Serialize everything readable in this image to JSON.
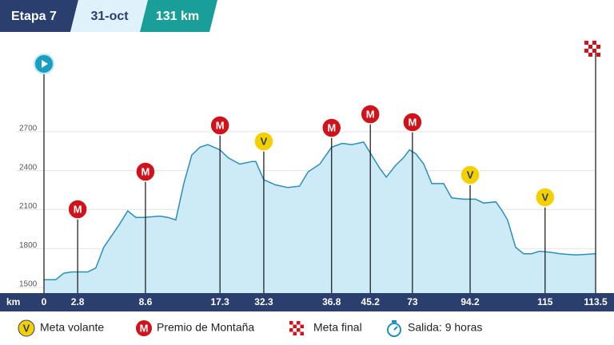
{
  "header": {
    "stage": "Etapa 7",
    "date": "31-oct",
    "distance": "131 km"
  },
  "chart_data": {
    "type": "area",
    "x_unit": "km",
    "x": [
      0,
      2.8,
      4.7,
      6.6,
      10.4,
      12.3,
      14.2,
      16.1,
      18.0,
      19.9,
      21.8,
      23.7,
      27.5,
      29.4,
      31.3,
      33.2,
      35.1,
      37.0,
      38.9,
      41.8,
      43.7,
      46.5,
      49.4,
      50.3,
      52.2,
      55.0,
      57.9,
      60.7,
      62.7,
      65.5,
      68.3,
      70.8,
      73.1,
      75.9,
      77.8,
      79.7,
      81.3,
      83.5,
      85.4,
      86.8,
      88.3,
      90.2,
      92.1,
      94.9,
      96.8,
      99.7,
      102.5,
      104.4,
      107.3,
      108.8,
      110.1,
      112.0,
      113.9,
      115.8,
      117.7,
      120.6,
      122.5,
      126.3,
      131
    ],
    "values": [
      1560,
      1560,
      1610,
      1620,
      1620,
      1650,
      1810,
      1900,
      1990,
      2090,
      2040,
      2040,
      2050,
      2040,
      2020,
      2300,
      2520,
      2580,
      2600,
      2560,
      2500,
      2450,
      2470,
      2470,
      2330,
      2290,
      2270,
      2280,
      2390,
      2450,
      2580,
      2610,
      2600,
      2620,
      2520,
      2420,
      2350,
      2440,
      2500,
      2560,
      2530,
      2450,
      2300,
      2300,
      2190,
      2180,
      2180,
      2150,
      2160,
      2090,
      2020,
      1810,
      1760,
      1760,
      1780,
      1770,
      1760,
      1750,
      1760
    ],
    "color": "#cdeaf7",
    "line_color": "#2a8fb8",
    "xlim": [
      0,
      131
    ],
    "ylim": [
      1500,
      3400
    ],
    "yticks": [
      1500,
      1800,
      2100,
      2400,
      2700
    ],
    "grid": true,
    "markers": [
      {
        "x": 0,
        "label": "0"
      },
      {
        "x": 8.0,
        "label": "2.8",
        "icon": "M"
      },
      {
        "x": 24.1,
        "label": "8.6",
        "icon": "M"
      },
      {
        "x": 41.8,
        "label": "17.3",
        "icon": "M"
      },
      {
        "x": 52.2,
        "label": "32.3",
        "icon": "V"
      },
      {
        "x": 68.3,
        "label": "36.8",
        "icon": "M"
      },
      {
        "x": 77.5,
        "label": "45.2",
        "icon": "M"
      },
      {
        "x": 87.5,
        "label": "73",
        "icon": "M"
      },
      {
        "x": 101.2,
        "label": "94.2",
        "icon": "V"
      },
      {
        "x": 119.0,
        "label": "115",
        "icon": "V"
      },
      {
        "x": 131,
        "label": "113.5"
      }
    ]
  },
  "legend": [
    {
      "symbol": "V",
      "label": "Meta volante"
    },
    {
      "symbol": "M",
      "label": "Premio de Montaña"
    },
    {
      "label": "Meta final"
    },
    {
      "label": "Salida: 9 horas"
    }
  ]
}
